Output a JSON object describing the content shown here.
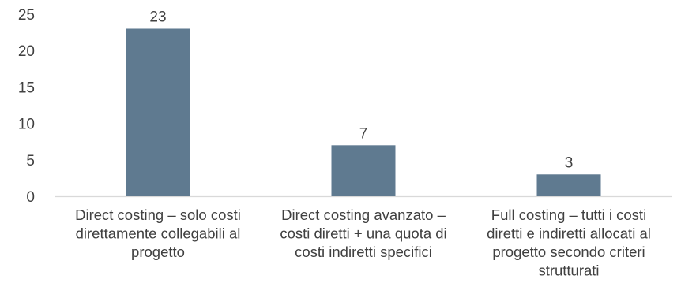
{
  "chart_data": {
    "type": "bar",
    "categories": [
      [
        "Direct costing – solo costi",
        "direttamente collegabili al",
        "progetto"
      ],
      [
        "Direct costing avanzato –",
        "costi diretti + una quota di",
        "costi indiretti specifici"
      ],
      [
        "Full costing – tutti i costi",
        "diretti e indiretti allocati al",
        "progetto secondo criteri",
        "strutturati"
      ]
    ],
    "values": [
      23,
      7,
      3
    ],
    "data_labels": [
      "23",
      "7",
      "3"
    ],
    "ylim": [
      0,
      25
    ],
    "yticks": [
      "0",
      "5",
      "10",
      "15",
      "20",
      "25"
    ],
    "grid": false,
    "legend": "none",
    "title": "",
    "xlabel": "",
    "ylabel": "",
    "colors": {
      "bar": "#5f7a90",
      "axis": "#d9d9d9",
      "text": "#404040"
    }
  }
}
